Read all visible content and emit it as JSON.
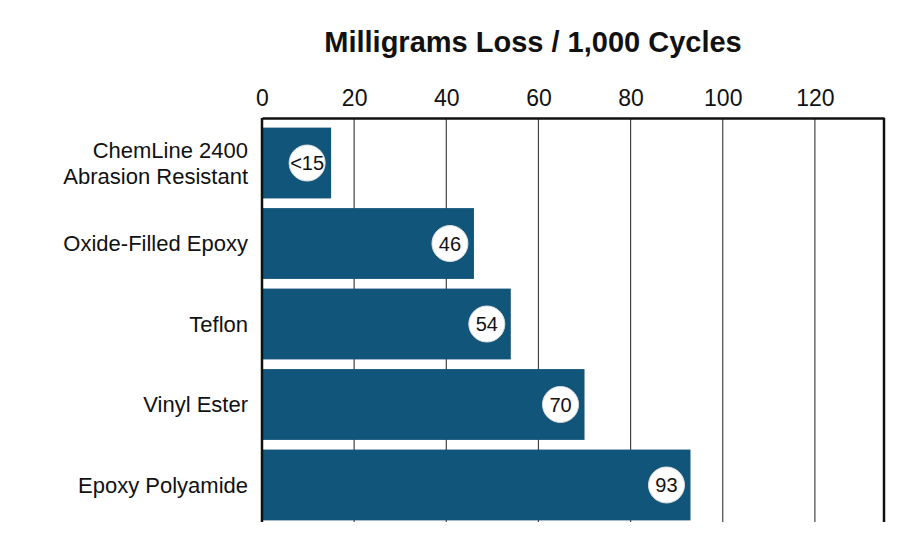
{
  "chart_data": {
    "type": "bar",
    "title": "Milligrams Loss / 1,000 Cycles",
    "orientation": "horizontal",
    "categories": [
      "ChemLine 2400\nAbrasion Resistant",
      "Oxide-Filled Epoxy",
      "Teflon",
      "Vinyl Ester",
      "Epoxy Polyamide"
    ],
    "values": [
      15,
      46,
      54,
      70,
      93
    ],
    "value_labels": [
      "<15",
      "46",
      "54",
      "70",
      "93"
    ],
    "color": "#12557a",
    "xlim": [
      0,
      135
    ],
    "xticks": [
      0,
      20,
      40,
      60,
      80,
      100,
      120
    ],
    "grid": true,
    "data_labels": true
  }
}
